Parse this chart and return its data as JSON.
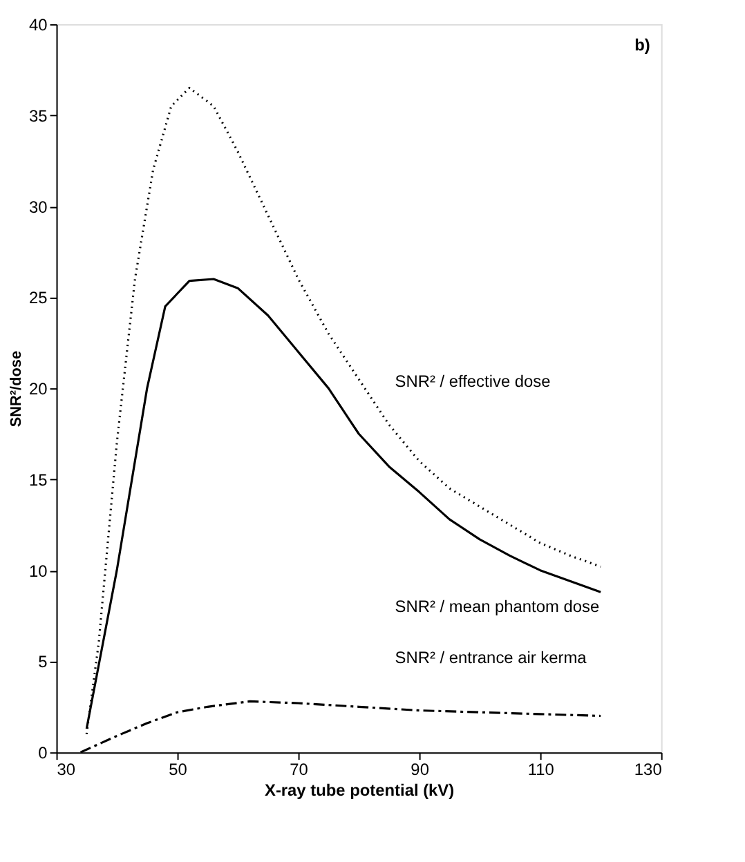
{
  "chart_data": {
    "type": "line",
    "xlabel": "X-ray tube potential (kV)",
    "ylabel": "SNR²/dose",
    "xlim": [
      30,
      130
    ],
    "xticks": [
      30,
      50,
      70,
      90,
      110,
      130
    ],
    "ylim": [
      0,
      40
    ],
    "yticks": [
      0,
      5,
      10,
      15,
      20,
      25,
      30,
      35,
      40
    ],
    "grid": false,
    "marker": "none",
    "series": [
      {
        "name": "SNR² / effective dose",
        "color": "#000000",
        "line_style": "dotted",
        "x": [
          35,
          37,
          40,
          43,
          46,
          49,
          52,
          56,
          60,
          65,
          70,
          75,
          80,
          85,
          90,
          95,
          100,
          105,
          110,
          115,
          120
        ],
        "values": [
          1,
          6,
          17,
          26,
          32,
          35.5,
          36.5,
          35.5,
          33,
          29.5,
          26,
          23,
          20.5,
          18,
          16,
          14.5,
          13.5,
          12.5,
          11.5,
          10.8,
          10.2
        ]
      },
      {
        "name": "SNR² / mean phantom dose",
        "color": "#000000",
        "line_style": "solid",
        "x": [
          35,
          40,
          45,
          48,
          52,
          56,
          60,
          65,
          70,
          75,
          80,
          85,
          90,
          95,
          100,
          105,
          110,
          115,
          120
        ],
        "values": [
          1.3,
          10,
          20,
          24.5,
          25.9,
          26,
          25.5,
          24,
          22,
          20,
          17.5,
          15.7,
          14.3,
          12.8,
          11.7,
          10.8,
          10,
          9.4,
          8.8
        ]
      },
      {
        "name": "SNR² / entrance air kerma",
        "color": "#000000",
        "line_style": "dashed",
        "x": [
          34,
          40,
          45,
          50,
          55,
          62,
          70,
          80,
          90,
          100,
          110,
          120
        ],
        "values": [
          0,
          0.9,
          1.6,
          2.2,
          2.5,
          2.8,
          2.7,
          2.5,
          2.3,
          2.2,
          2.1,
          2.0
        ]
      }
    ],
    "annotations": [
      "b)"
    ]
  }
}
